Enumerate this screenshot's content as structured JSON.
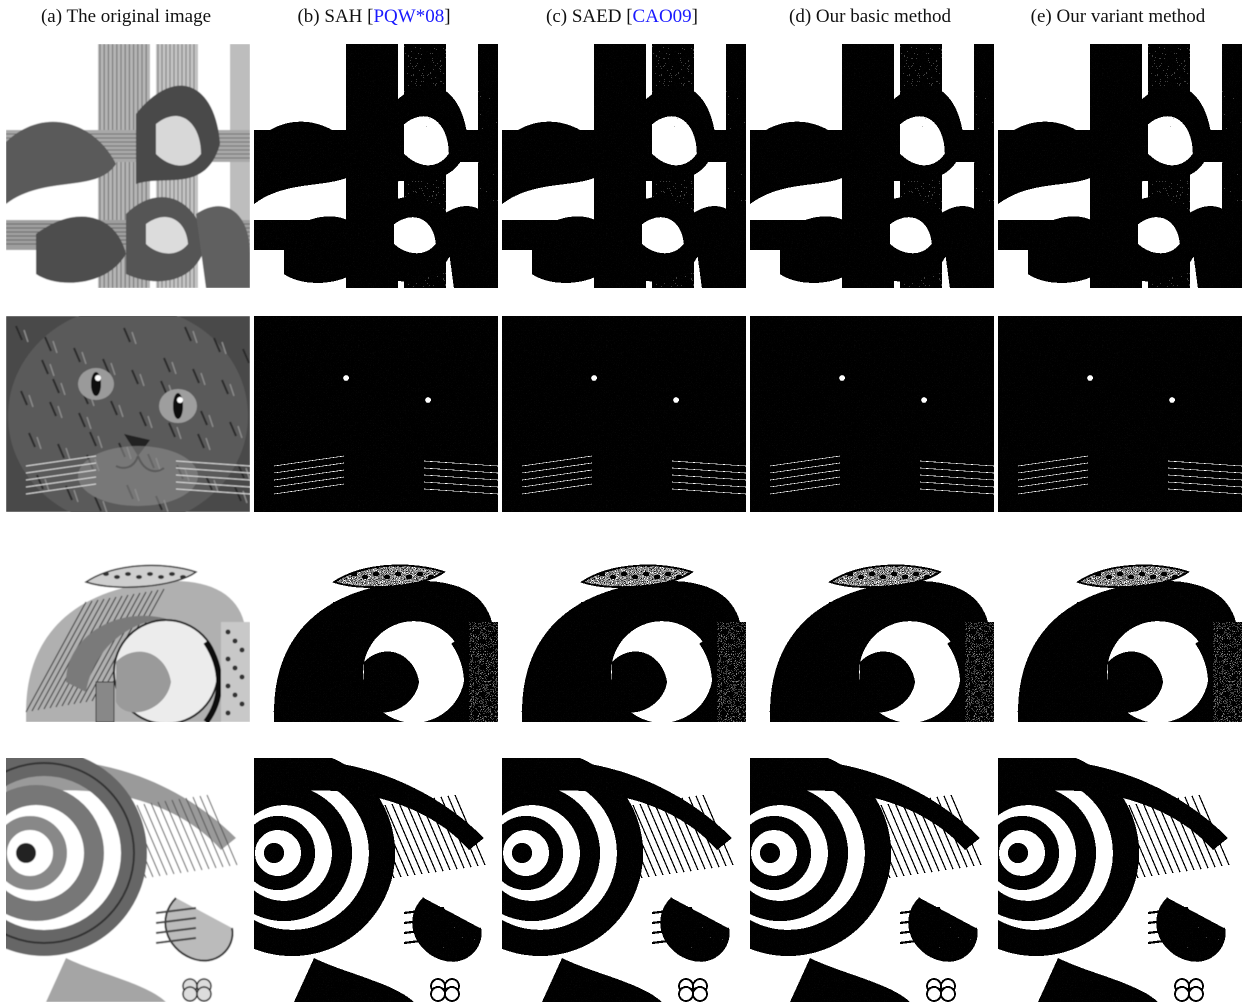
{
  "figure": {
    "columns": [
      {
        "tag": "(a)",
        "label": "The original image",
        "cite": "",
        "style": "original"
      },
      {
        "tag": "(b)",
        "label": "SAH",
        "cite": "PQW*08",
        "style": "stipple"
      },
      {
        "tag": "(c)",
        "label": "SAED",
        "cite": "CAO09",
        "style": "stipple"
      },
      {
        "tag": "(d)",
        "label": "Our basic method",
        "cite": "",
        "style": "stipple"
      },
      {
        "tag": "(e)",
        "label": "Our variant method",
        "cite": "",
        "style": "stipple"
      }
    ],
    "rows": [
      {
        "subject": "woven-ribbon",
        "background": "#ffffff"
      },
      {
        "subject": "cat-face",
        "background": "#3a3a3a"
      },
      {
        "subject": "anatomy-joint",
        "background": "#ffffff"
      },
      {
        "subject": "inner-ear",
        "background": "#ffffff"
      }
    ]
  }
}
